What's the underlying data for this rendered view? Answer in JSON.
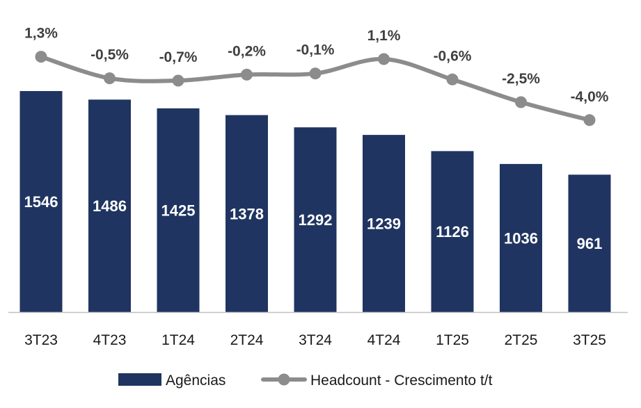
{
  "colors": {
    "bar": "#1f3461",
    "line": "#8c8c8c",
    "axis": "#bfbfbf"
  },
  "legend": {
    "bars_label": "Agências",
    "line_label": "Headcount - Crescimento t/t"
  },
  "chart_data": {
    "type": "bar",
    "categories": [
      "3T23",
      "4T23",
      "1T24",
      "2T24",
      "3T24",
      "4T24",
      "1T25",
      "2T25",
      "3T25"
    ],
    "series": [
      {
        "name": "Agências",
        "type": "bar",
        "values": [
          1546,
          1486,
          1425,
          1378,
          1292,
          1239,
          1126,
          1036,
          961
        ],
        "labels": [
          "1546",
          "1486",
          "1425",
          "1378",
          "1292",
          "1239",
          "1126",
          "1036",
          "961"
        ]
      },
      {
        "name": "Headcount - Crescimento t/t",
        "type": "line",
        "values": [
          1.3,
          -0.5,
          -0.7,
          -0.2,
          -0.1,
          1.1,
          -0.6,
          -2.5,
          -4.0
        ],
        "labels": [
          "1,3%",
          "-0,5%",
          "-0,7%",
          "-0,2%",
          "-0,1%",
          "1,1%",
          "-0,6%",
          "-2,5%",
          "-4,0%"
        ]
      }
    ],
    "legend_position": "bottom",
    "grid": false
  }
}
